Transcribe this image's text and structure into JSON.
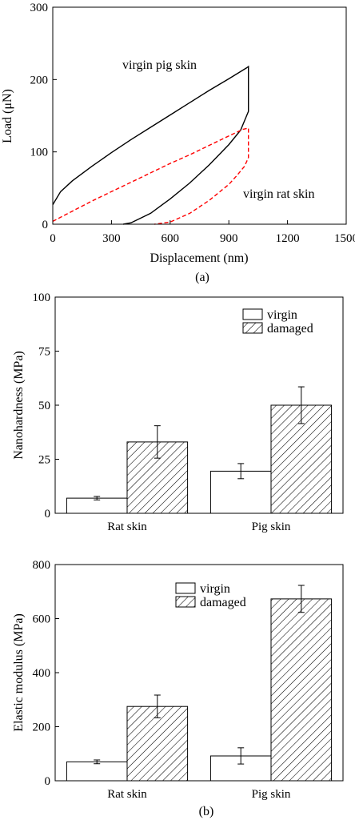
{
  "chart_data": [
    {
      "type": "line",
      "xlabel": "Displacement (nm)",
      "ylabel": "Load (μN)",
      "xlim": [
        0,
        1500
      ],
      "ylim": [
        0,
        300
      ],
      "xticks": [
        "0",
        "300",
        "600",
        "900",
        "1200",
        "1500"
      ],
      "yticks": [
        "0",
        "100",
        "200",
        "300"
      ],
      "caption": "(a)",
      "colors": {
        "pig": "#000000",
        "rat": "#ff0000"
      },
      "annotations": {
        "pig": "virgin pig skin",
        "rat": "virgin rat skin"
      },
      "series": [
        {
          "label": "virgin pig skin",
          "style": "solid",
          "x": [
            0,
            40,
            100,
            200,
            300,
            400,
            500,
            600,
            700,
            800,
            900,
            990,
            1000,
            1000,
            960,
            900,
            800,
            700,
            600,
            500,
            400,
            360
          ],
          "y": [
            27,
            45,
            60,
            80,
            99,
            117,
            134,
            151,
            168,
            185,
            201,
            216,
            218,
            156,
            130,
            110,
            82,
            57,
            35,
            15,
            2,
            0
          ]
        },
        {
          "label": "virgin rat skin",
          "style": "dashed",
          "x": [
            0,
            100,
            200,
            300,
            400,
            500,
            600,
            700,
            800,
            900,
            970,
            1000,
            1000,
            980,
            940,
            900,
            800,
            700,
            600,
            520
          ],
          "y": [
            4,
            18,
            32,
            45,
            58,
            71,
            84,
            96,
            109,
            122,
            131,
            133,
            92,
            80,
            67,
            55,
            33,
            15,
            3,
            0
          ]
        }
      ]
    },
    {
      "type": "bar",
      "ylabel": "Nanohardness (MPa)",
      "ylim": [
        0,
        100
      ],
      "yticks": [
        "0",
        "25",
        "50",
        "75",
        "100"
      ],
      "categories": [
        "Rat skin",
        "Pig skin"
      ],
      "legend": [
        "virgin",
        "damaged"
      ],
      "series": [
        {
          "name": "virgin",
          "values": [
            7,
            19.5
          ],
          "errors": [
            0.8,
            3.5
          ]
        },
        {
          "name": "damaged",
          "values": [
            33,
            50
          ],
          "errors": [
            7.5,
            8.5
          ]
        }
      ]
    },
    {
      "type": "bar",
      "ylabel": "Elastic modulus (MPa)",
      "ylim": [
        0,
        800
      ],
      "yticks": [
        "0",
        "200",
        "400",
        "600",
        "800"
      ],
      "categories": [
        "Rat skin",
        "Pig skin"
      ],
      "legend": [
        "virgin",
        "damaged"
      ],
      "caption": "(b)",
      "series": [
        {
          "name": "virgin",
          "values": [
            70,
            92
          ],
          "errors": [
            7,
            30
          ]
        },
        {
          "name": "damaged",
          "values": [
            275,
            673
          ],
          "errors": [
            42,
            50
          ]
        }
      ]
    }
  ]
}
